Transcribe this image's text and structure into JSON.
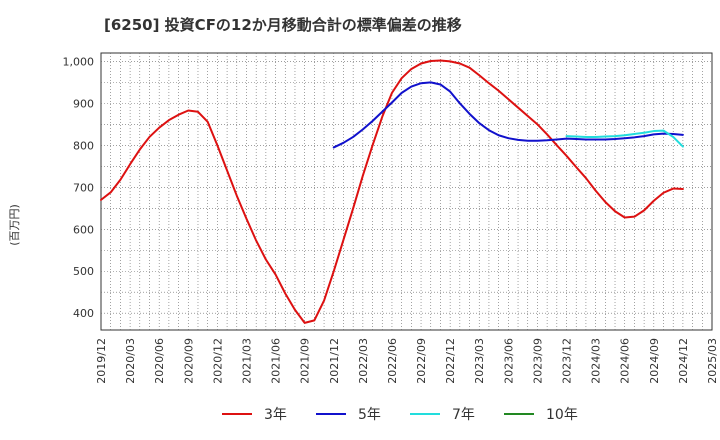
{
  "chart_data": {
    "type": "line",
    "title": "[6250]  投資CFの12か月移動合計の標準偏差の推移",
    "ylabel": "(百万円)",
    "xlabel": "",
    "ylim": [
      360,
      1020
    ],
    "yticks": [
      400,
      500,
      600,
      700,
      800,
      900,
      1000
    ],
    "ytick_labels": [
      "400",
      "500",
      "600",
      "700",
      "800",
      "900",
      "1,000"
    ],
    "xlim": [
      "2019-12",
      "2025-03"
    ],
    "xtick_labels": [
      "2019/12",
      "2020/03",
      "2020/06",
      "2020/09",
      "2020/12",
      "2021/03",
      "2021/06",
      "2021/09",
      "2021/12",
      "2022/03",
      "2022/06",
      "2022/09",
      "2022/12",
      "2023/03",
      "2023/06",
      "2023/09",
      "2023/12",
      "2024/03",
      "2024/06",
      "2024/09",
      "2024/12",
      "2025/03"
    ],
    "grid": true,
    "legend_position": "bottom",
    "series": [
      {
        "name": "3年",
        "color": "#dd1111",
        "points": [
          [
            "2019-12",
            670
          ],
          [
            "2020-01",
            688
          ],
          [
            "2020-02",
            718
          ],
          [
            "2020-03",
            755
          ],
          [
            "2020-04",
            790
          ],
          [
            "2020-05",
            820
          ],
          [
            "2020-06",
            842
          ],
          [
            "2020-07",
            860
          ],
          [
            "2020-08",
            873
          ],
          [
            "2020-09",
            883
          ],
          [
            "2020-10",
            880
          ],
          [
            "2020-11",
            856
          ],
          [
            "2020-12",
            800
          ],
          [
            "2021-01",
            740
          ],
          [
            "2021-02",
            680
          ],
          [
            "2021-03",
            625
          ],
          [
            "2021-04",
            573
          ],
          [
            "2021-05",
            528
          ],
          [
            "2021-06",
            492
          ],
          [
            "2021-07",
            447
          ],
          [
            "2021-08",
            408
          ],
          [
            "2021-09",
            377
          ],
          [
            "2021-10",
            383
          ],
          [
            "2021-11",
            430
          ],
          [
            "2021-12",
            500
          ],
          [
            "2022-01",
            575
          ],
          [
            "2022-02",
            650
          ],
          [
            "2022-03",
            728
          ],
          [
            "2022-04",
            800
          ],
          [
            "2022-05",
            868
          ],
          [
            "2022-06",
            925
          ],
          [
            "2022-07",
            960
          ],
          [
            "2022-08",
            982
          ],
          [
            "2022-09",
            995
          ],
          [
            "2022-10",
            1001
          ],
          [
            "2022-11",
            1002
          ],
          [
            "2022-12",
            1000
          ],
          [
            "2023-01",
            995
          ],
          [
            "2023-02",
            985
          ],
          [
            "2023-03",
            967
          ],
          [
            "2023-04",
            948
          ],
          [
            "2023-05",
            930
          ],
          [
            "2023-06",
            910
          ],
          [
            "2023-07",
            890
          ],
          [
            "2023-08",
            870
          ],
          [
            "2023-09",
            850
          ],
          [
            "2023-10",
            826
          ],
          [
            "2023-11",
            800
          ],
          [
            "2023-12",
            775
          ],
          [
            "2024-01",
            748
          ],
          [
            "2024-02",
            722
          ],
          [
            "2024-03",
            692
          ],
          [
            "2024-04",
            665
          ],
          [
            "2024-05",
            643
          ],
          [
            "2024-06",
            628
          ],
          [
            "2024-07",
            630
          ],
          [
            "2024-08",
            645
          ],
          [
            "2024-09",
            668
          ],
          [
            "2024-10",
            687
          ],
          [
            "2024-11",
            697
          ],
          [
            "2024-12",
            696
          ]
        ]
      },
      {
        "name": "5年",
        "color": "#1111cc",
        "points": [
          [
            "2021-12",
            795
          ],
          [
            "2022-01",
            806
          ],
          [
            "2022-02",
            820
          ],
          [
            "2022-03",
            838
          ],
          [
            "2022-04",
            858
          ],
          [
            "2022-05",
            880
          ],
          [
            "2022-06",
            902
          ],
          [
            "2022-07",
            925
          ],
          [
            "2022-08",
            940
          ],
          [
            "2022-09",
            948
          ],
          [
            "2022-10",
            950
          ],
          [
            "2022-11",
            945
          ],
          [
            "2022-12",
            928
          ],
          [
            "2023-01",
            900
          ],
          [
            "2023-02",
            875
          ],
          [
            "2023-03",
            853
          ],
          [
            "2023-04",
            836
          ],
          [
            "2023-05",
            824
          ],
          [
            "2023-06",
            817
          ],
          [
            "2023-07",
            813
          ],
          [
            "2023-08",
            811
          ],
          [
            "2023-09",
            811
          ],
          [
            "2023-10",
            812
          ],
          [
            "2023-11",
            814
          ],
          [
            "2023-12",
            816
          ],
          [
            "2024-01",
            815
          ],
          [
            "2024-02",
            814
          ],
          [
            "2024-03",
            814
          ],
          [
            "2024-04",
            814
          ],
          [
            "2024-05",
            815
          ],
          [
            "2024-06",
            817
          ],
          [
            "2024-07",
            819
          ],
          [
            "2024-08",
            822
          ],
          [
            "2024-09",
            826
          ],
          [
            "2024-10",
            828
          ],
          [
            "2024-11",
            827
          ],
          [
            "2024-12",
            825
          ]
        ]
      },
      {
        "name": "7年",
        "color": "#22dddd",
        "points": [
          [
            "2023-12",
            822
          ],
          [
            "2024-01",
            821
          ],
          [
            "2024-02",
            820
          ],
          [
            "2024-03",
            820
          ],
          [
            "2024-04",
            821
          ],
          [
            "2024-05",
            822
          ],
          [
            "2024-06",
            824
          ],
          [
            "2024-07",
            827
          ],
          [
            "2024-08",
            830
          ],
          [
            "2024-09",
            834
          ],
          [
            "2024-10",
            835
          ],
          [
            "2024-11",
            820
          ],
          [
            "2024-12",
            797
          ]
        ]
      },
      {
        "name": "10年",
        "color": "#228822",
        "points": []
      }
    ]
  }
}
